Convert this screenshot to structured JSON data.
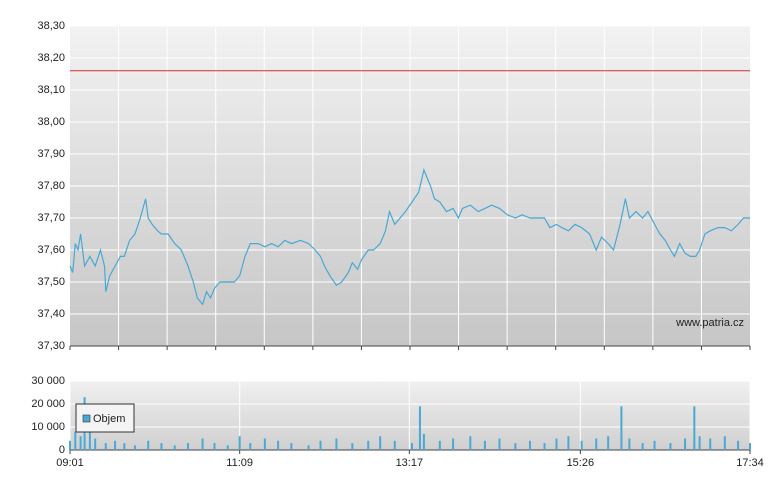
{
  "chart_data": [
    {
      "type": "line",
      "color": "#4aa8d4",
      "grid": true,
      "watermark": "www.patria.cz",
      "reference_line": 38.16,
      "reference_color": "#d03030",
      "ylim": [
        37.3,
        38.3
      ],
      "yticks": [
        {
          "value": 37.3,
          "label": "37,30"
        },
        {
          "value": 37.4,
          "label": "37,40"
        },
        {
          "value": 37.5,
          "label": "37,50"
        },
        {
          "value": 37.6,
          "label": "37,60"
        },
        {
          "value": 37.7,
          "label": "37,70"
        },
        {
          "value": 37.8,
          "label": "37,80"
        },
        {
          "value": 37.9,
          "label": "37,90"
        },
        {
          "value": 38.0,
          "label": "38,00"
        },
        {
          "value": 38.1,
          "label": "38,10"
        },
        {
          "value": 38.2,
          "label": "38,20"
        },
        {
          "value": 38.3,
          "label": "38,30"
        }
      ],
      "xlim": [
        "09:01",
        "17:34"
      ],
      "x": [
        "09:01",
        "09:03",
        "09:05",
        "09:07",
        "09:09",
        "09:12",
        "09:16",
        "09:20",
        "09:24",
        "09:27",
        "09:28",
        "09:31",
        "09:35",
        "09:39",
        "09:42",
        "09:46",
        "09:50",
        "09:54",
        "09:58",
        "10:00",
        "10:03",
        "10:07",
        "10:10",
        "10:15",
        "10:20",
        "10:25",
        "10:30",
        "10:34",
        "10:37",
        "10:41",
        "10:44",
        "10:47",
        "10:50",
        "10:54",
        "11:00",
        "11:05",
        "11:09",
        "11:13",
        "11:17",
        "11:23",
        "11:28",
        "11:33",
        "11:38",
        "11:43",
        "11:48",
        "11:55",
        "12:01",
        "12:06",
        "12:10",
        "12:13",
        "12:17",
        "12:22",
        "12:26",
        "12:31",
        "12:34",
        "12:38",
        "12:41",
        "12:46",
        "12:50",
        "12:55",
        "12:59",
        "13:02",
        "13:06",
        "13:10",
        "13:14",
        "13:19",
        "13:24",
        "13:28",
        "13:33",
        "13:36",
        "13:40",
        "13:45",
        "13:50",
        "13:54",
        "13:57",
        "14:03",
        "14:09",
        "14:14",
        "14:19",
        "14:25",
        "14:31",
        "14:37",
        "14:42",
        "14:48",
        "14:54",
        "14:59",
        "15:03",
        "15:08",
        "15:12",
        "15:17",
        "15:22",
        "15:27",
        "15:33",
        "15:38",
        "15:42",
        "15:47",
        "15:51",
        "15:56",
        "16:00",
        "16:03",
        "16:08",
        "16:13",
        "16:17",
        "16:22",
        "16:26",
        "16:30",
        "16:34",
        "16:37",
        "16:41",
        "16:45",
        "16:49",
        "16:53",
        "16:56",
        "17:00",
        "17:04",
        "17:10",
        "17:15",
        "17:20",
        "17:25",
        "17:29",
        "17:34"
      ],
      "values": [
        37.55,
        37.53,
        37.62,
        37.6,
        37.65,
        37.55,
        37.58,
        37.55,
        37.6,
        37.55,
        37.47,
        37.52,
        37.55,
        37.58,
        37.58,
        37.63,
        37.65,
        37.7,
        37.76,
        37.7,
        37.68,
        37.66,
        37.65,
        37.65,
        37.62,
        37.6,
        37.55,
        37.5,
        37.45,
        37.43,
        37.47,
        37.45,
        37.48,
        37.5,
        37.5,
        37.5,
        37.52,
        37.58,
        37.62,
        37.62,
        37.61,
        37.62,
        37.61,
        37.63,
        37.62,
        37.63,
        37.62,
        37.6,
        37.58,
        37.55,
        37.52,
        37.49,
        37.5,
        37.53,
        37.56,
        37.54,
        37.57,
        37.6,
        37.6,
        37.62,
        37.66,
        37.72,
        37.68,
        37.7,
        37.72,
        37.75,
        37.78,
        37.85,
        37.8,
        37.76,
        37.75,
        37.72,
        37.73,
        37.7,
        37.73,
        37.74,
        37.72,
        37.73,
        37.74,
        37.73,
        37.71,
        37.7,
        37.71,
        37.7,
        37.7,
        37.7,
        37.67,
        37.68,
        37.67,
        37.66,
        37.68,
        37.67,
        37.65,
        37.6,
        37.64,
        37.62,
        37.6,
        37.68,
        37.76,
        37.7,
        37.72,
        37.7,
        37.72,
        37.68,
        37.65,
        37.63,
        37.6,
        37.58,
        37.62,
        37.59,
        37.58,
        37.58,
        37.6,
        37.65,
        37.66,
        37.67,
        37.67,
        37.66,
        37.68,
        37.7,
        37.7
      ]
    },
    {
      "type": "bar",
      "grid": true,
      "ylim": [
        0,
        30000
      ],
      "yticks": [
        0,
        {
          "value": 10000,
          "label": "10 000"
        },
        {
          "value": 20000,
          "label": "20 000"
        },
        {
          "value": 30000,
          "label": "30 000"
        }
      ],
      "xlim": [
        "09:01",
        "17:34"
      ],
      "xticks": [
        "09:01",
        "11:09",
        "13:17",
        "15:26",
        "17:34"
      ],
      "x": [
        "09:01",
        "09:05",
        "09:09",
        "09:12",
        "09:16",
        "09:20",
        "09:28",
        "09:35",
        "09:42",
        "09:50",
        "10:00",
        "10:10",
        "10:20",
        "10:30",
        "10:41",
        "10:50",
        "11:00",
        "11:09",
        "11:17",
        "11:28",
        "11:38",
        "11:48",
        "12:01",
        "12:10",
        "12:22",
        "12:34",
        "12:46",
        "12:55",
        "13:06",
        "13:19",
        "13:25",
        "13:28",
        "13:40",
        "13:50",
        "14:03",
        "14:14",
        "14:25",
        "14:37",
        "14:48",
        "14:59",
        "15:08",
        "15:17",
        "15:27",
        "15:38",
        "15:47",
        "15:57",
        "16:03",
        "16:13",
        "16:22",
        "16:34",
        "16:45",
        "16:52",
        "16:56",
        "17:04",
        "17:15",
        "17:25",
        "17:34"
      ],
      "series": [
        {
          "name": "Objem",
          "color": "#4aa8d4",
          "values": [
            4000,
            8000,
            6000,
            23000,
            9000,
            5000,
            3000,
            4000,
            3000,
            2000,
            4000,
            3000,
            2000,
            3000,
            5000,
            3000,
            2000,
            6000,
            3000,
            5000,
            4000,
            3000,
            2000,
            4000,
            5000,
            3000,
            4000,
            6000,
            4000,
            3000,
            19000,
            7000,
            4000,
            5000,
            6000,
            4000,
            5000,
            3000,
            4000,
            3000,
            5000,
            6000,
            4000,
            5000,
            6000,
            19000,
            5000,
            3000,
            4000,
            3000,
            5000,
            19000,
            6000,
            5000,
            6000,
            4000,
            3000
          ]
        }
      ]
    }
  ]
}
